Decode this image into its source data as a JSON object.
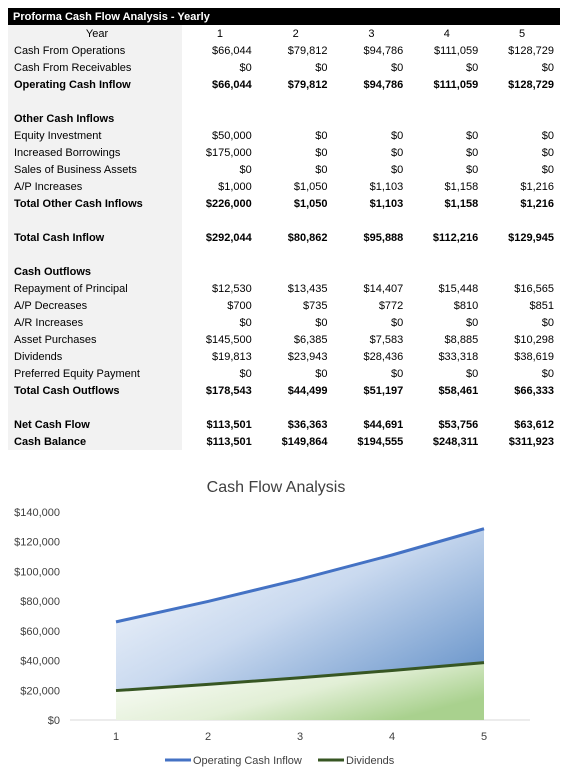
{
  "table": {
    "title": "Proforma Cash Flow Analysis - Yearly",
    "year_label": "Year",
    "years": [
      "1",
      "2",
      "3",
      "4",
      "5"
    ],
    "rows": [
      {
        "label": "Cash From Operations",
        "values": [
          "$66,044",
          "$79,812",
          "$94,786",
          "$111,059",
          "$128,729"
        ],
        "bold": false
      },
      {
        "label": "Cash From Receivables",
        "values": [
          "$0",
          "$0",
          "$0",
          "$0",
          "$0"
        ],
        "bold": false
      },
      {
        "label": "Operating Cash Inflow",
        "values": [
          "$66,044",
          "$79,812",
          "$94,786",
          "$111,059",
          "$128,729"
        ],
        "bold": true
      },
      {
        "label": "",
        "values": [
          "",
          "",
          "",
          "",
          ""
        ],
        "bold": false
      },
      {
        "label": "Other Cash Inflows",
        "values": [
          "",
          "",
          "",
          "",
          ""
        ],
        "bold": true
      },
      {
        "label": "Equity Investment",
        "values": [
          "$50,000",
          "$0",
          "$0",
          "$0",
          "$0"
        ],
        "bold": false
      },
      {
        "label": "Increased Borrowings",
        "values": [
          "$175,000",
          "$0",
          "$0",
          "$0",
          "$0"
        ],
        "bold": false
      },
      {
        "label": "Sales of Business Assets",
        "values": [
          "$0",
          "$0",
          "$0",
          "$0",
          "$0"
        ],
        "bold": false
      },
      {
        "label": "A/P Increases",
        "values": [
          "$1,000",
          "$1,050",
          "$1,103",
          "$1,158",
          "$1,216"
        ],
        "bold": false
      },
      {
        "label": "Total Other Cash Inflows",
        "values": [
          "$226,000",
          "$1,050",
          "$1,103",
          "$1,158",
          "$1,216"
        ],
        "bold": true
      },
      {
        "label": "",
        "values": [
          "",
          "",
          "",
          "",
          ""
        ],
        "bold": false
      },
      {
        "label": "Total Cash Inflow",
        "values": [
          "$292,044",
          "$80,862",
          "$95,888",
          "$112,216",
          "$129,945"
        ],
        "bold": true
      },
      {
        "label": "",
        "values": [
          "",
          "",
          "",
          "",
          ""
        ],
        "bold": false
      },
      {
        "label": "Cash Outflows",
        "values": [
          "",
          "",
          "",
          "",
          ""
        ],
        "bold": true
      },
      {
        "label": "Repayment of Principal",
        "values": [
          "$12,530",
          "$13,435",
          "$14,407",
          "$15,448",
          "$16,565"
        ],
        "bold": false
      },
      {
        "label": "A/P Decreases",
        "values": [
          "$700",
          "$735",
          "$772",
          "$810",
          "$851"
        ],
        "bold": false
      },
      {
        "label": "A/R Increases",
        "values": [
          "$0",
          "$0",
          "$0",
          "$0",
          "$0"
        ],
        "bold": false
      },
      {
        "label": "Asset Purchases",
        "values": [
          "$145,500",
          "$6,385",
          "$7,583",
          "$8,885",
          "$10,298"
        ],
        "bold": false
      },
      {
        "label": "Dividends",
        "values": [
          "$19,813",
          "$23,943",
          "$28,436",
          "$33,318",
          "$38,619"
        ],
        "bold": false
      },
      {
        "label": "Preferred Equity Payment",
        "values": [
          "$0",
          "$0",
          "$0",
          "$0",
          "$0"
        ],
        "bold": false
      },
      {
        "label": "Total Cash Outflows",
        "values": [
          "$178,543",
          "$44,499",
          "$51,197",
          "$58,461",
          "$66,333"
        ],
        "bold": true
      },
      {
        "label": "",
        "values": [
          "",
          "",
          "",
          "",
          ""
        ],
        "bold": false
      },
      {
        "label": "Net Cash Flow",
        "values": [
          "$113,501",
          "$36,363",
          "$44,691",
          "$53,756",
          "$63,612"
        ],
        "bold": true
      },
      {
        "label": "Cash Balance",
        "values": [
          "$113,501",
          "$149,864",
          "$194,555",
          "$248,311",
          "$311,923"
        ],
        "bold": true
      }
    ]
  },
  "chart_data": {
    "type": "area",
    "title": "Cash Flow Analysis",
    "categories": [
      "1",
      "2",
      "3",
      "4",
      "5"
    ],
    "series": [
      {
        "name": "Operating Cash Inflow",
        "values": [
          66044,
          79812,
          94786,
          111059,
          128729
        ],
        "color": "#4472c4"
      },
      {
        "name": "Dividends",
        "values": [
          19813,
          23943,
          28436,
          33318,
          38619
        ],
        "color": "#375623"
      }
    ],
    "ylim": [
      0,
      140000
    ],
    "yticks": [
      0,
      20000,
      40000,
      60000,
      80000,
      100000,
      120000,
      140000
    ],
    "ytick_labels": [
      "$0",
      "$20,000",
      "$40,000",
      "$60,000",
      "$80,000",
      "$100,000",
      "$120,000",
      "$140,000"
    ],
    "legend": "bottom",
    "grid": false
  }
}
